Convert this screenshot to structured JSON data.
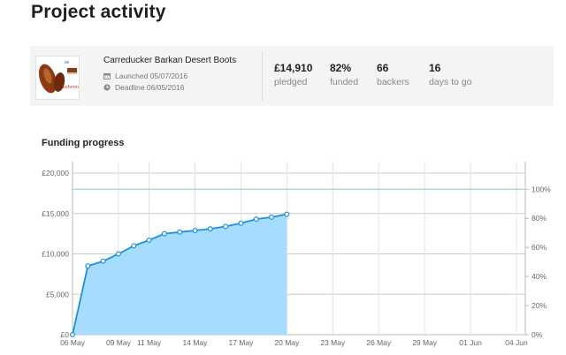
{
  "page": {
    "title": "Project activity"
  },
  "project": {
    "name": "Carreducker Barkan Desert Boots",
    "thumbnail_caption": "kshoon",
    "launched": "Launched 05/07/2016",
    "deadline": "Deadline 06/05/2016",
    "stats": [
      {
        "value": "£14,910",
        "label": "pledged"
      },
      {
        "value": "82%",
        "label": "funded"
      },
      {
        "value": "66",
        "label": "backers"
      },
      {
        "value": "16",
        "label": "days to go"
      }
    ]
  },
  "colors": {
    "area_fill": "#a6dcff",
    "line": "#1e90dc",
    "goal_line": "#8fdca8",
    "grid": "#cccccc"
  },
  "chart_title": "Funding progress",
  "chart_data": {
    "type": "area",
    "title": "Funding progress",
    "x_tick_labels": [
      "06 May",
      "09 May",
      "11 May",
      "14 May",
      "17 May",
      "20 May",
      "23 May",
      "26 May",
      "29 May",
      "01 Jun",
      "04 Jun"
    ],
    "xlim": [
      "2016-05-06",
      "2016-06-04"
    ],
    "y_left_ticks": [
      "£0",
      "£5,000",
      "£10,000",
      "£15,000",
      "£20,000"
    ],
    "ylim": [
      0,
      20000
    ],
    "y_right_ticks": [
      "0%",
      "20%",
      "40%",
      "60%",
      "80%",
      "100%"
    ],
    "goal": 18000,
    "grid": true,
    "series": [
      {
        "x": [
          "2016-05-06",
          "2016-05-07",
          "2016-05-08",
          "2016-05-09",
          "2016-05-10",
          "2016-05-11",
          "2016-05-12",
          "2016-05-13",
          "2016-05-14",
          "2016-05-15",
          "2016-05-16",
          "2016-05-17",
          "2016-05-18",
          "2016-05-19",
          "2016-05-20"
        ],
        "y": [
          0,
          8500,
          9100,
          10000,
          11000,
          11700,
          12500,
          12700,
          12900,
          13100,
          13400,
          13800,
          14300,
          14550,
          14910
        ]
      }
    ]
  }
}
